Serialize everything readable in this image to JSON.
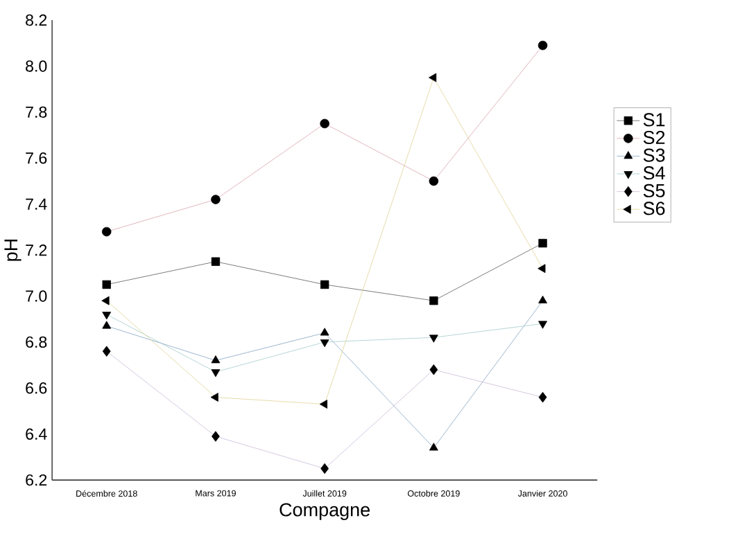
{
  "chart_data": {
    "type": "line",
    "xlabel": "Compagne",
    "ylabel": "pH",
    "categories": [
      "Décembre 2018",
      "Mars 2019",
      "Juillet 2019",
      "Octobre 2019",
      "Janvier 2020"
    ],
    "ylim": [
      6.2,
      8.2
    ],
    "yticks": [
      {
        "value": 6.2,
        "label": "6.2"
      },
      {
        "value": 6.4,
        "label": "6.4"
      },
      {
        "value": 6.6,
        "label": "6.6"
      },
      {
        "value": 6.8,
        "label": "6.8"
      },
      {
        "value": 7.0,
        "label": "7.0"
      },
      {
        "value": 7.2,
        "label": "7.2"
      },
      {
        "value": 7.4,
        "label": "7.4"
      },
      {
        "value": 7.6,
        "label": "7.6"
      },
      {
        "value": 7.8,
        "label": "7.8"
      },
      {
        "value": 8.0,
        "label": "8.0"
      },
      {
        "value": 8.2,
        "label": "8.2"
      }
    ],
    "grid": false,
    "legend": "right",
    "series": [
      {
        "name": "S1",
        "color": "#555555",
        "marker": "square",
        "values": [
          7.05,
          7.15,
          7.05,
          6.98,
          7.23
        ]
      },
      {
        "name": "S2",
        "color": "#d9a0a8",
        "marker": "circle",
        "values": [
          7.28,
          7.42,
          7.75,
          7.5,
          8.09
        ]
      },
      {
        "name": "S3",
        "color": "#7fa0c0",
        "marker": "triangle",
        "values": [
          6.87,
          6.72,
          6.84,
          6.34,
          6.98
        ]
      },
      {
        "name": "S4",
        "color": "#a0c8c8",
        "marker": "triangle-down",
        "values": [
          6.92,
          6.67,
          6.8,
          6.82,
          6.88
        ]
      },
      {
        "name": "S5",
        "color": "#c8b8d8",
        "marker": "diamond",
        "values": [
          6.76,
          6.39,
          6.25,
          6.68,
          6.56
        ]
      },
      {
        "name": "S6",
        "color": "#e0d090",
        "marker": "triangle-left",
        "values": [
          6.98,
          6.56,
          6.53,
          7.95,
          7.12
        ]
      }
    ]
  }
}
